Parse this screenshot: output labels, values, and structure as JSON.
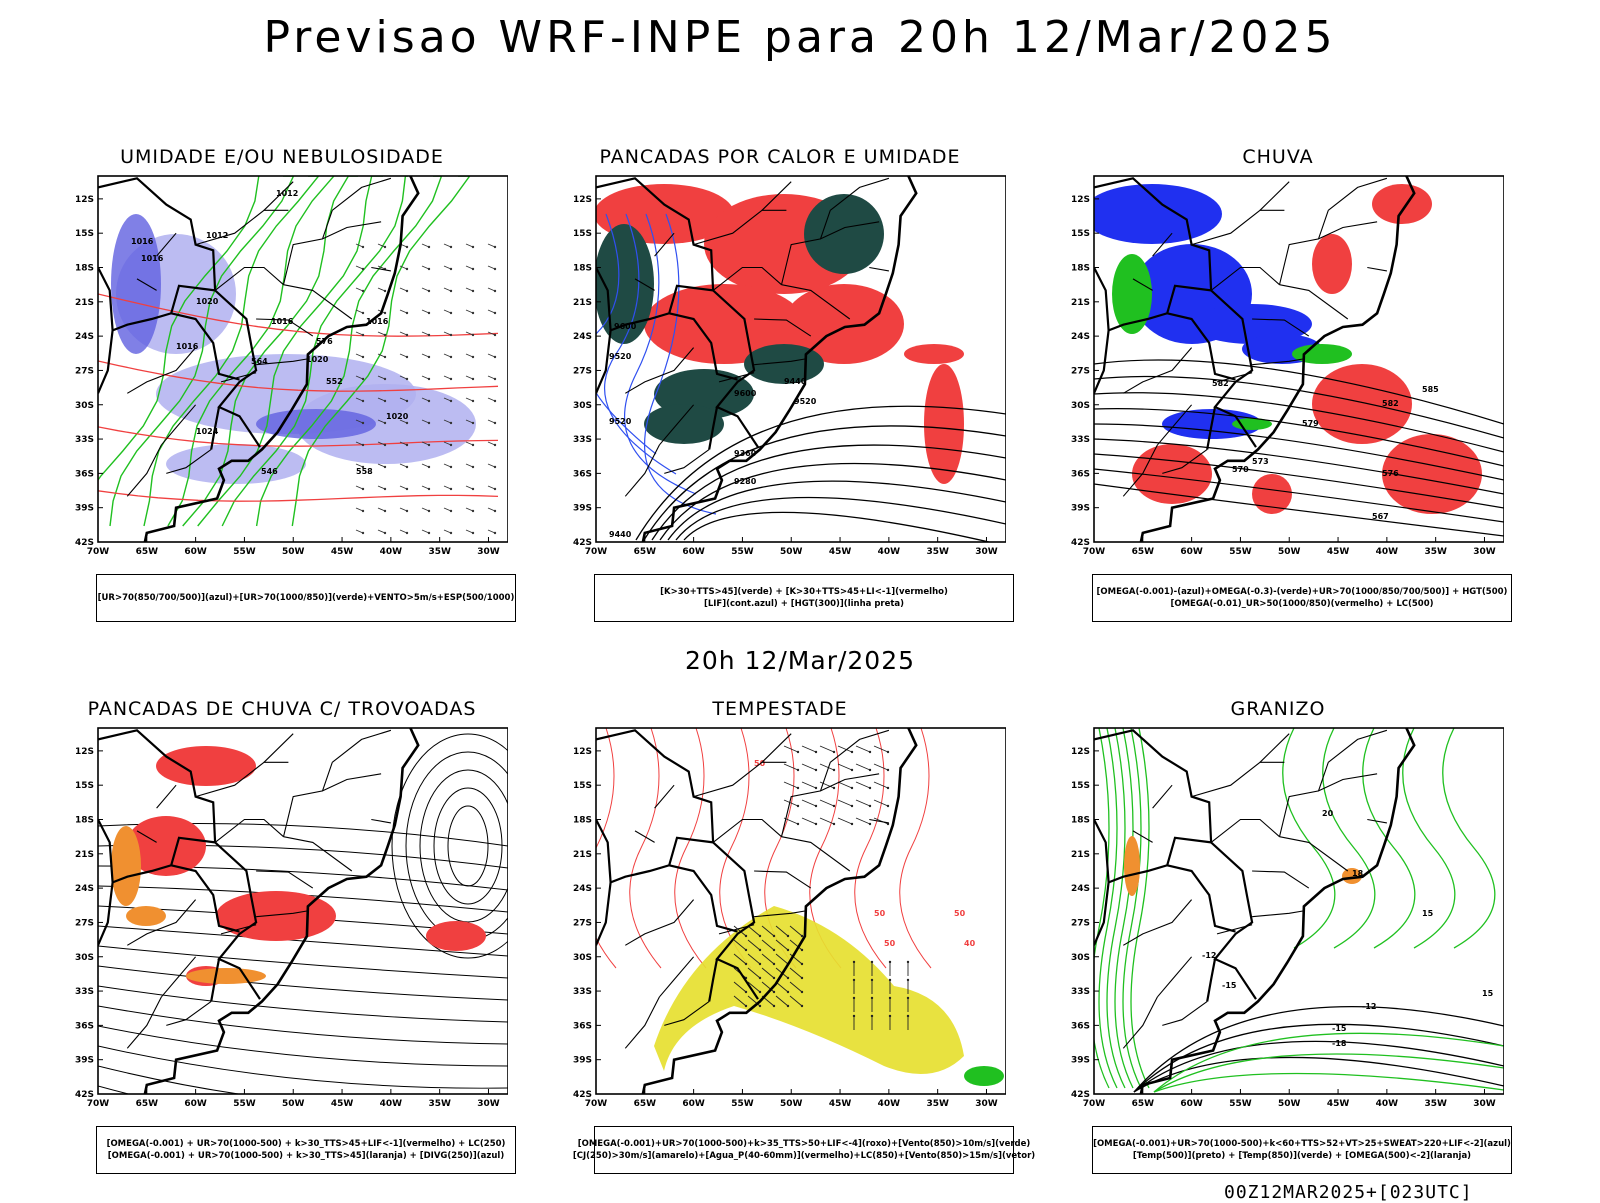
{
  "title": "Previsao WRF-INPE  para 20h 12/Mar/2025",
  "mid_date": "20h 12/Mar/2025",
  "stamp": "00Z12MAR2025+[023UTC]",
  "axes": {
    "lat_labels": [
      "12S",
      "15S",
      "18S",
      "21S",
      "24S",
      "27S",
      "30S",
      "33S",
      "36S",
      "39S",
      "42S"
    ],
    "lon_labels": [
      "70W",
      "65W",
      "60W",
      "55W",
      "50W",
      "45W",
      "40W",
      "35W",
      "30W"
    ]
  },
  "panels": [
    {
      "title": "UMIDADE E/OU NEBULOSIDADE",
      "legend": [
        "[UR>70(850/700/500)](azul)+[UR>70(1000/850)](verde)+VENTO>5m/s+ESP(500/1000)"
      ],
      "contour_labels": [
        "1012",
        "1012",
        "1016",
        "1016",
        "1020",
        "1016",
        "1016",
        "1016",
        "1020",
        "1024",
        "1020",
        "576",
        "564",
        "552",
        "546",
        "558"
      ],
      "colors": {
        "blue_shade": "#b0b0f0",
        "blue_dark": "#6060e0",
        "green": "#20c020",
        "red": "#f04040"
      }
    },
    {
      "title": "PANCADAS POR CALOR E UMIDADE",
      "legend": [
        "[K>30+TTS>45](verde) + [K>30+TTS>45+LI<-1](vermelho)",
        "[LIF](cont.azul) + [HGT(300)](linha preta)"
      ],
      "contour_labels": [
        "9600",
        "9520",
        "9520",
        "9600",
        "9520",
        "9440",
        "9360",
        "9280",
        "9440"
      ],
      "colors": {
        "red": "#f04040",
        "dark_green": "#1f4a44",
        "blue": "#3050f0"
      }
    },
    {
      "title": "CHUVA",
      "legend": [
        "[OMEGA(-0.001)-(azul)+OMEGA(-0.3)-(verde)+UR>70(1000/850/700/500)] + HGT(500)",
        "[OMEGA(-0.01)_UR>50(1000/850)(vermelho) + LC(500)"
      ],
      "contour_labels": [
        "582",
        "585",
        "582",
        "579",
        "573",
        "570",
        "576",
        "567"
      ],
      "colors": {
        "blue": "#2030f0",
        "green": "#20c020",
        "red": "#f04040"
      }
    },
    {
      "title": "PANCADAS DE CHUVA C/ TROVOADAS",
      "legend": [
        "[OMEGA(-0.001) + UR>70(1000-500) + k>30_TTS>45+LIF<-1](vermelho) + LC(250)",
        "[OMEGA(-0.001) + UR>70(1000-500) + k>30_TTS>45](laranja) + [DIVG(250)](azul)"
      ],
      "contour_labels": [],
      "colors": {
        "red": "#f04040",
        "orange": "#f09030",
        "blue": "#2030f0"
      }
    },
    {
      "title": "TEMPESTADE",
      "legend": [
        "[OMEGA(-0.001)+UR>70(1000-500)+k>35_TTS>50+LIF<-4](roxo)+[Vento(850)>10m/s](verde)",
        "[CJ(250)>30m/s](amarelo)+[Agua_P(40-60mm)](vermelho)+LC(850)+[Vento(850)>15m/s](vetor)"
      ],
      "contour_labels": [
        "50",
        "50",
        "50",
        "40",
        "50"
      ],
      "colors": {
        "yellow": "#e6e030",
        "red": "#f04040",
        "green": "#20c020"
      }
    },
    {
      "title": "GRANIZO",
      "legend": [
        "[OMEGA(-0.001)+UR>70(1000-500)+k<60+TTS>52+VT>25+SWEAT>220+LIF<-2](azul)",
        "[Temp(500)](preto) + [Temp(850)](verde) + [OMEGA(500)<-2](laranja)"
      ],
      "contour_labels": [
        "-12",
        "-15",
        "-12",
        "-15",
        "-18",
        "15",
        "15",
        "18",
        "20"
      ],
      "colors": {
        "green": "#20c020",
        "orange": "#f09030"
      }
    }
  ]
}
